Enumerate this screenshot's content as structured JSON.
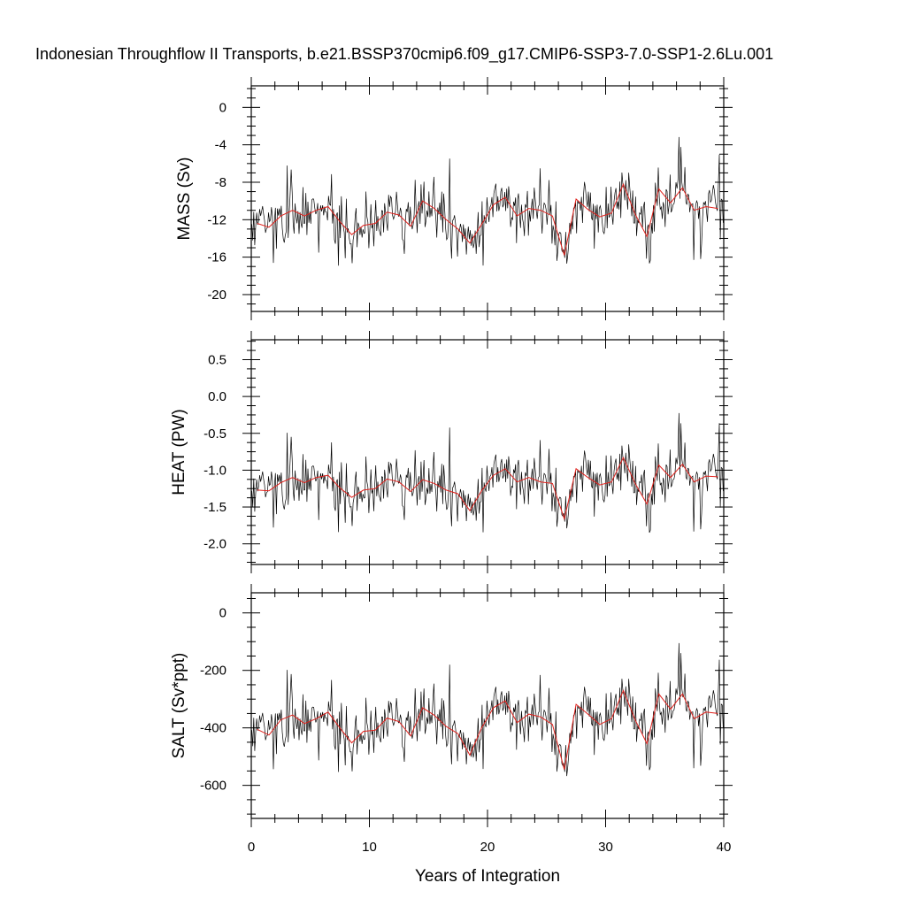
{
  "chart_data": [
    {
      "type": "line",
      "title": "Indonesian Throughflow II Transports, b.e21.BSSP370cmip6.f09_g17.CMIP6-SSP3-7.0-SSP1-2.6Lu.001",
      "ylabel": "MASS (Sv)",
      "xlabel": "",
      "xlim": [
        0,
        40
      ],
      "ylim": [
        -21.8,
        2.3
      ],
      "yticks": [
        0,
        -4,
        -8,
        -12,
        -16,
        -20
      ],
      "yticklabels": [
        "0",
        "-4",
        "-8",
        "-12",
        "-16",
        "-20"
      ],
      "series": [
        {
          "style": "monthly",
          "color": "#000000"
        },
        {
          "style": "annual mean",
          "color": "#e0201b",
          "x": [
            0.5,
            1.5,
            2.5,
            3.5,
            4.5,
            5.5,
            6.5,
            7.5,
            8.5,
            9.5,
            10.5,
            11.5,
            12.5,
            13.5,
            14.5,
            15.5,
            16.5,
            17.5,
            18.5,
            19.5,
            20.5,
            21.5,
            22.5,
            23.5,
            24.5,
            25.5,
            26.5,
            27.5,
            28.5,
            29.5,
            30.5,
            31.5,
            32.5,
            33.5,
            34.5,
            35.5,
            36.5,
            37.5,
            38.5,
            39.5
          ],
          "values": [
            -12.4,
            -12.8,
            -11.6,
            -11.0,
            -11.6,
            -11.0,
            -10.6,
            -12.2,
            -13.6,
            -12.6,
            -12.4,
            -11.2,
            -11.5,
            -12.7,
            -10.0,
            -10.8,
            -12.0,
            -13.0,
            -14.5,
            -12.5,
            -10.4,
            -9.6,
            -11.6,
            -10.8,
            -11.0,
            -11.6,
            -15.8,
            -9.8,
            -10.9,
            -11.7,
            -11.3,
            -8.2,
            -11.4,
            -13.8,
            -8.7,
            -10.2,
            -8.6,
            -11.0,
            -10.6,
            -10.8
          ]
        }
      ]
    },
    {
      "type": "line",
      "title": "",
      "ylabel": "HEAT (PW)",
      "xlabel": "",
      "xlim": [
        0,
        40
      ],
      "ylim": [
        -2.28,
        0.77
      ],
      "yticks": [
        0.5,
        0.0,
        -0.5,
        -1.0,
        -1.5,
        -2.0
      ],
      "yticklabels": [
        "0.5",
        "0.0",
        "-0.5",
        "-1.0",
        "-1.5",
        "-2.0"
      ],
      "series": [
        {
          "style": "monthly",
          "color": "#000000"
        },
        {
          "style": "annual mean",
          "color": "#e0201b",
          "x": [
            0.5,
            1.5,
            2.5,
            3.5,
            4.5,
            5.5,
            6.5,
            7.5,
            8.5,
            9.5,
            10.5,
            11.5,
            12.5,
            13.5,
            14.5,
            15.5,
            16.5,
            17.5,
            18.5,
            19.5,
            20.5,
            21.5,
            22.5,
            23.5,
            24.5,
            25.5,
            26.5,
            27.5,
            28.5,
            29.5,
            30.5,
            31.5,
            32.5,
            33.5,
            34.5,
            35.5,
            36.5,
            37.5,
            38.5,
            39.5
          ],
          "values": [
            -1.27,
            -1.28,
            -1.17,
            -1.1,
            -1.17,
            -1.1,
            -1.07,
            -1.24,
            -1.37,
            -1.27,
            -1.25,
            -1.12,
            -1.16,
            -1.29,
            -1.13,
            -1.18,
            -1.27,
            -1.32,
            -1.55,
            -1.28,
            -1.07,
            -0.98,
            -1.16,
            -1.1,
            -1.16,
            -1.18,
            -1.66,
            -0.98,
            -1.1,
            -1.2,
            -1.16,
            -0.83,
            -1.18,
            -1.46,
            -0.93,
            -1.1,
            -0.92,
            -1.16,
            -1.08,
            -1.09
          ]
        }
      ]
    },
    {
      "type": "line",
      "title": "",
      "ylabel": "SALT (Sv*ppt)",
      "xlabel": "Years of Integration",
      "xlim": [
        0,
        40
      ],
      "ylim": [
        -715,
        70
      ],
      "xticks": [
        0,
        10,
        20,
        30,
        40
      ],
      "xticklabels": [
        "0",
        "10",
        "20",
        "30",
        "40"
      ],
      "yticks": [
        0,
        -200,
        -400,
        -600
      ],
      "yticklabels": [
        "0",
        "-200",
        "-400",
        "-600"
      ],
      "series": [
        {
          "style": "monthly",
          "color": "#000000"
        },
        {
          "style": "annual mean",
          "color": "#e0201b",
          "x": [
            0.5,
            1.5,
            2.5,
            3.5,
            4.5,
            5.5,
            6.5,
            7.5,
            8.5,
            9.5,
            10.5,
            11.5,
            12.5,
            13.5,
            14.5,
            15.5,
            16.5,
            17.5,
            18.5,
            19.5,
            20.5,
            21.5,
            22.5,
            23.5,
            24.5,
            25.5,
            26.5,
            27.5,
            28.5,
            29.5,
            30.5,
            31.5,
            32.5,
            33.5,
            34.5,
            35.5,
            36.5,
            37.5,
            38.5,
            39.5
          ],
          "values": [
            -405,
            -425,
            -372,
            -355,
            -385,
            -368,
            -345,
            -400,
            -452,
            -412,
            -408,
            -366,
            -378,
            -428,
            -330,
            -356,
            -395,
            -420,
            -495,
            -400,
            -330,
            -306,
            -382,
            -352,
            -362,
            -388,
            -545,
            -318,
            -352,
            -388,
            -368,
            -270,
            -372,
            -455,
            -282,
            -335,
            -282,
            -368,
            -345,
            -350
          ]
        }
      ]
    }
  ]
}
